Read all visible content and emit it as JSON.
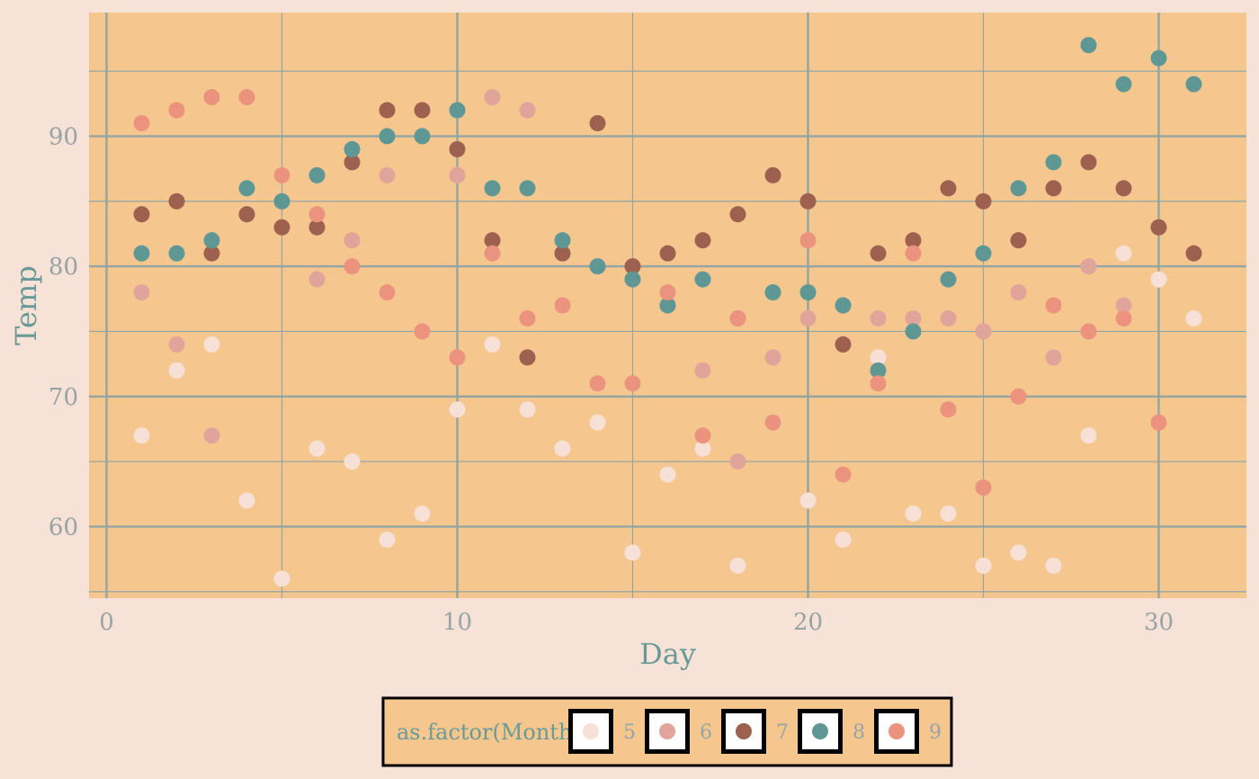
{
  "chart_data": {
    "type": "scatter",
    "title": "",
    "xlabel": "Day",
    "ylabel": "Temp",
    "xlim": [
      -0.5,
      32.5
    ],
    "ylim": [
      54.5,
      99.5
    ],
    "x_ticks": [
      0,
      10,
      20,
      30
    ],
    "y_ticks": [
      60,
      70,
      80,
      90
    ],
    "x_tick_labels": [
      "0",
      "10",
      "20",
      "30"
    ],
    "y_tick_labels": [
      "60",
      "70",
      "80",
      "90"
    ],
    "grid": true,
    "legend": {
      "title": "as.factor(Month)",
      "position": "bottom"
    },
    "series": [
      {
        "name": "5",
        "color": "#f7e0d6",
        "x": [
          1,
          2,
          3,
          4,
          5,
          6,
          7,
          8,
          9,
          10,
          11,
          12,
          13,
          14,
          15,
          16,
          17,
          18,
          19,
          20,
          21,
          22,
          23,
          24,
          25,
          26,
          27,
          28,
          29,
          30,
          31
        ],
        "y": [
          67,
          72,
          74,
          62,
          56,
          66,
          65,
          59,
          61,
          69,
          74,
          69,
          66,
          68,
          58,
          64,
          66,
          57,
          68,
          62,
          59,
          73,
          61,
          61,
          57,
          58,
          57,
          67,
          81,
          79,
          76
        ]
      },
      {
        "name": "6",
        "color": "#e0a49a",
        "x": [
          1,
          2,
          3,
          4,
          5,
          6,
          7,
          8,
          9,
          10,
          11,
          12,
          13,
          14,
          15,
          16,
          17,
          18,
          19,
          20,
          21,
          22,
          23,
          24,
          25,
          26,
          27,
          28,
          29,
          30
        ],
        "y": [
          78,
          74,
          67,
          84,
          85,
          79,
          82,
          87,
          90,
          87,
          93,
          92,
          82,
          80,
          79,
          77,
          72,
          65,
          73,
          76,
          77,
          76,
          76,
          76,
          75,
          78,
          73,
          80,
          77,
          83
        ]
      },
      {
        "name": "7",
        "color": "#9e6150",
        "x": [
          1,
          2,
          3,
          4,
          5,
          6,
          7,
          8,
          9,
          10,
          11,
          12,
          13,
          14,
          15,
          16,
          17,
          18,
          19,
          20,
          21,
          22,
          23,
          24,
          25,
          26,
          27,
          28,
          29,
          30,
          31
        ],
        "y": [
          84,
          85,
          81,
          84,
          83,
          83,
          88,
          92,
          92,
          89,
          82,
          73,
          81,
          91,
          80,
          81,
          82,
          84,
          87,
          85,
          74,
          81,
          82,
          86,
          85,
          82,
          86,
          88,
          86,
          83,
          81
        ]
      },
      {
        "name": "8",
        "color": "#5f9795",
        "x": [
          1,
          2,
          3,
          4,
          5,
          6,
          7,
          8,
          9,
          10,
          11,
          12,
          13,
          14,
          15,
          16,
          17,
          18,
          19,
          20,
          21,
          22,
          23,
          24,
          25,
          26,
          27,
          28,
          29,
          30,
          31
        ],
        "y": [
          81,
          81,
          82,
          86,
          85,
          87,
          89,
          90,
          90,
          92,
          86,
          86,
          82,
          80,
          79,
          77,
          79,
          76,
          78,
          78,
          77,
          72,
          75,
          79,
          81,
          86,
          88,
          97,
          94,
          96,
          94
        ]
      },
      {
        "name": "9",
        "color": "#eb937f",
        "x": [
          1,
          2,
          3,
          4,
          5,
          6,
          7,
          8,
          9,
          10,
          11,
          12,
          13,
          14,
          15,
          16,
          17,
          18,
          19,
          20,
          21,
          22,
          23,
          24,
          25,
          26,
          27,
          28,
          29,
          30
        ],
        "y": [
          91,
          92,
          93,
          93,
          87,
          84,
          80,
          78,
          75,
          73,
          81,
          76,
          77,
          71,
          71,
          78,
          67,
          76,
          68,
          82,
          64,
          71,
          81,
          69,
          63,
          70,
          77,
          75,
          76,
          68
        ]
      }
    ]
  }
}
